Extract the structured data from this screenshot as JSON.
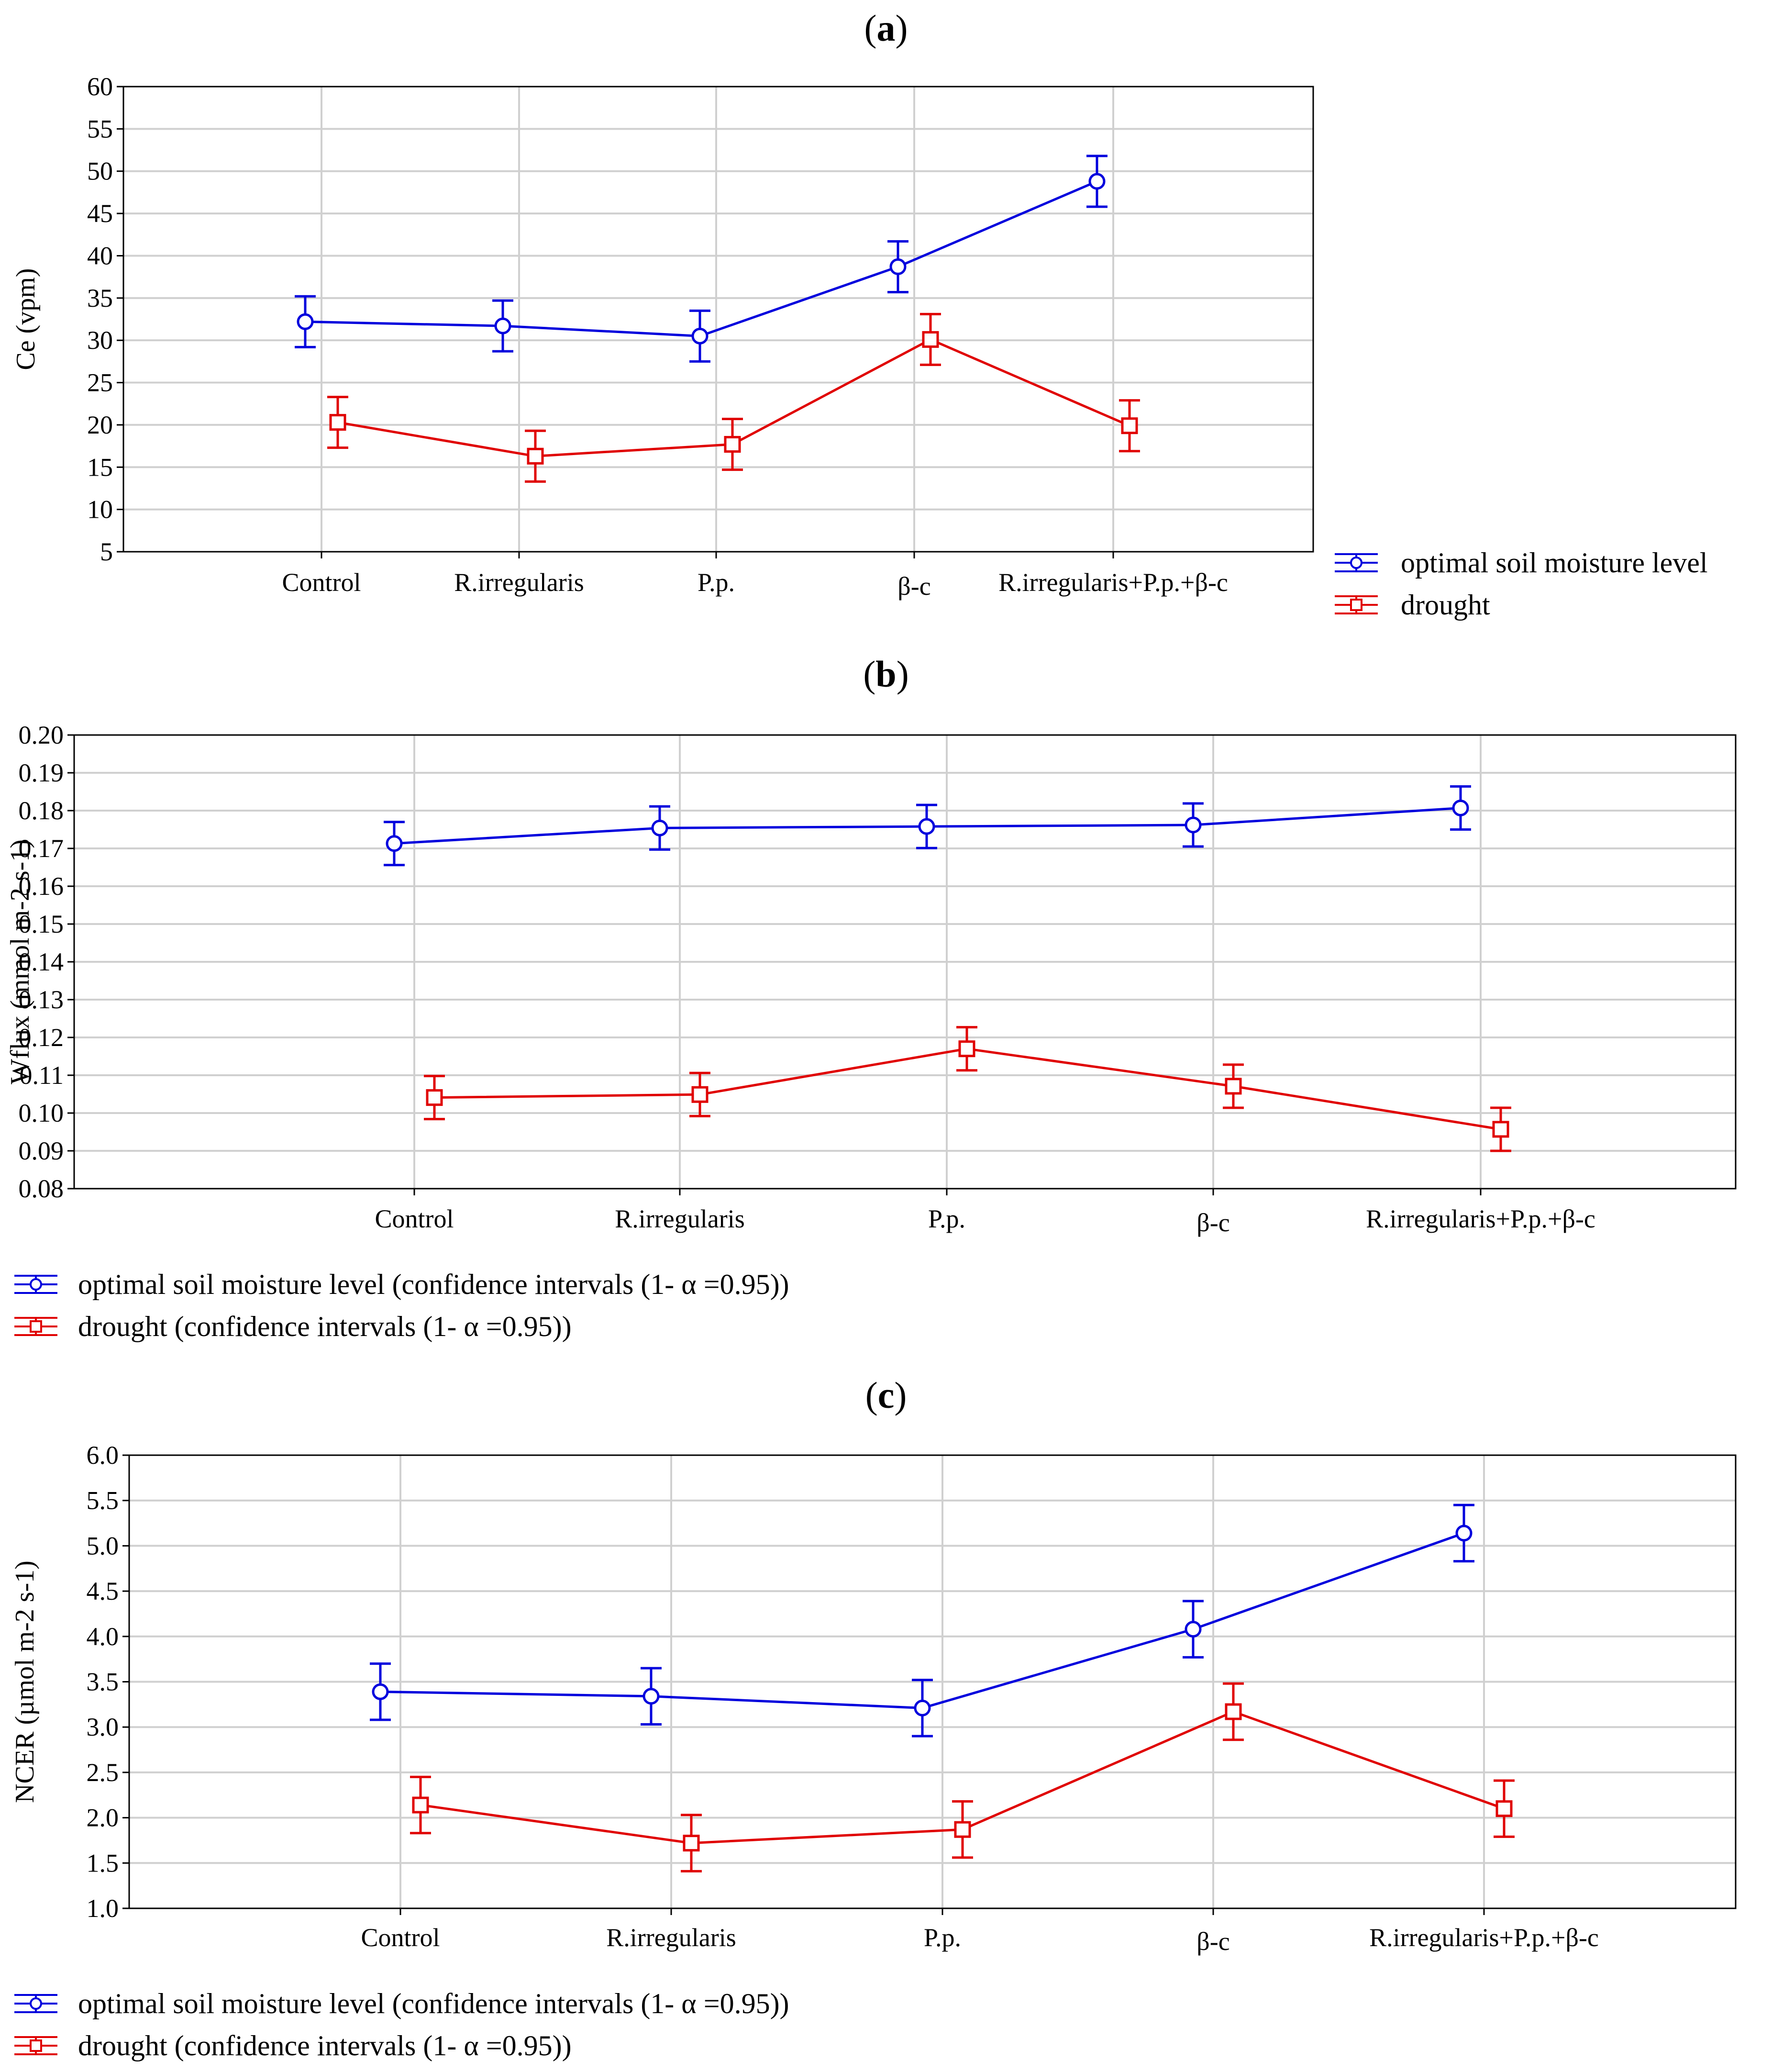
{
  "chart_data": [
    {
      "type": "line",
      "panel_label": "a",
      "title": "(a)",
      "xlabel": "",
      "ylabel": "Ce (vpm)",
      "ylim": [
        5,
        60
      ],
      "yticks": [
        "5",
        "10",
        "15",
        "20",
        "25",
        "30",
        "35",
        "40",
        "45",
        "50",
        "55",
        "60"
      ],
      "categories": [
        "Control",
        "R.irregularis",
        "P.p.",
        "β-c",
        "R.irregularis+P.p.+β-c"
      ],
      "grid": true,
      "legend_position": "right",
      "series": [
        {
          "name": "optimal soil moisture level",
          "color": "#0000dd",
          "marker": "circle",
          "values": [
            32.2,
            31.7,
            30.5,
            38.7,
            48.8
          ],
          "ci": [
            3.0,
            3.0,
            3.0,
            3.0,
            3.0
          ]
        },
        {
          "name": "drought",
          "color": "#e00000",
          "marker": "square",
          "values": [
            20.3,
            16.3,
            17.7,
            30.1,
            19.9
          ],
          "ci": [
            3.0,
            3.0,
            3.0,
            3.0,
            3.0
          ]
        }
      ]
    },
    {
      "type": "line",
      "panel_label": "b",
      "title": "(b)",
      "xlabel": "",
      "ylabel": "Wflux (mmol m-2 s-1)",
      "ylim": [
        0.08,
        0.2
      ],
      "yticks": [
        "0.08",
        "0.09",
        "0.10",
        "0.11",
        "0.12",
        "0.13",
        "0.14",
        "0.15",
        "0.16",
        "0.17",
        "0.18",
        "0.19",
        "0.20"
      ],
      "categories": [
        "Control",
        "R.irregularis",
        "P.p.",
        "β-c",
        "R.irregularis+P.p.+β-c"
      ],
      "grid": true,
      "legend_position": "bottom-left",
      "series": [
        {
          "name": "optimal soil moisture level (confidence intervals (1- α =0.95))",
          "color": "#0000dd",
          "marker": "circle",
          "values": [
            0.1713,
            0.1754,
            0.1758,
            0.1762,
            0.1807
          ],
          "ci": [
            0.0057,
            0.0057,
            0.0057,
            0.0057,
            0.0057
          ]
        },
        {
          "name": "drought (confidence intervals (1- α =0.95))",
          "color": "#e00000",
          "marker": "square",
          "values": [
            0.1041,
            0.1049,
            0.117,
            0.1071,
            0.0957
          ],
          "ci": [
            0.0057,
            0.0057,
            0.0057,
            0.0057,
            0.0057
          ]
        }
      ]
    },
    {
      "type": "line",
      "panel_label": "c",
      "title": "(c)",
      "xlabel": "",
      "ylabel": "NCER (µmol m-2 s-1)",
      "ylim": [
        1.0,
        6.0
      ],
      "yticks": [
        "1.0",
        "1.5",
        "2.0",
        "2.5",
        "3.0",
        "3.5",
        "4.0",
        "4.5",
        "5.0",
        "5.5",
        "6.0"
      ],
      "categories": [
        "Control",
        "R.irregularis",
        "P.p.",
        "β-c",
        "R.irregularis+P.p.+β-c"
      ],
      "grid": true,
      "legend_position": "bottom-left",
      "series": [
        {
          "name": "optimal soil moisture level (confidence intervals (1- α =0.95))",
          "color": "#0000dd",
          "marker": "circle",
          "values": [
            3.39,
            3.34,
            3.21,
            4.08,
            5.14
          ],
          "ci": [
            0.31,
            0.31,
            0.31,
            0.31,
            0.31
          ]
        },
        {
          "name": "drought (confidence intervals (1- α =0.95))",
          "color": "#e00000",
          "marker": "square",
          "values": [
            2.14,
            1.72,
            1.87,
            3.17,
            2.1
          ],
          "ci": [
            0.31,
            0.31,
            0.31,
            0.31,
            0.31
          ]
        }
      ]
    }
  ]
}
